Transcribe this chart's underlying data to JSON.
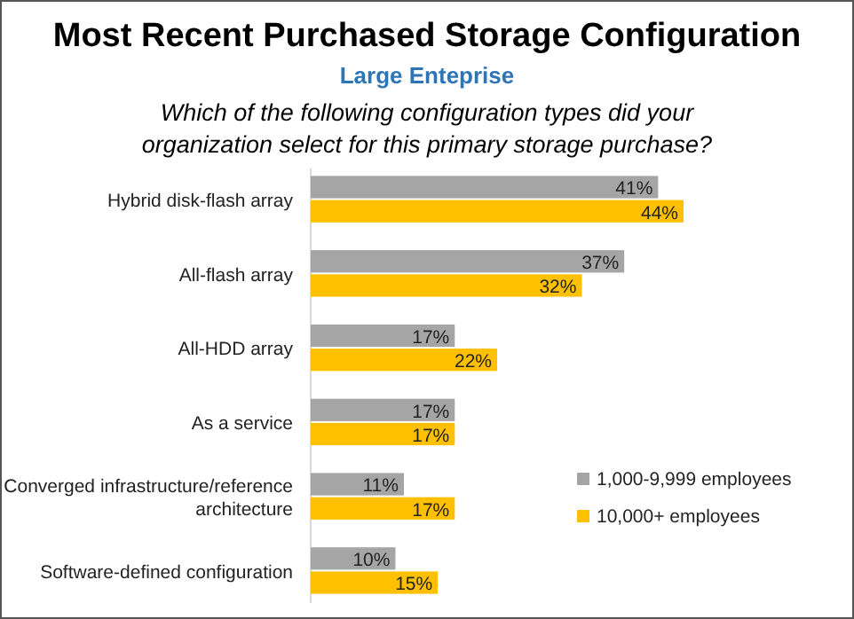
{
  "chart_data": {
    "type": "bar",
    "orientation": "horizontal",
    "title": "Most Recent Purchased Storage Configuration",
    "subtitle": "Large Enteprise",
    "annotations": [
      "Which of the following configuration types did your organization select for this primary storage purchase?"
    ],
    "categories": [
      "Hybrid disk-flash array",
      "All-flash array",
      "All-HDD array",
      "As a service",
      "Converged infrastructure/reference architecture",
      "Software-defined configuration"
    ],
    "series": [
      {
        "name": "1,000-9,999 employees",
        "color": "#a5a5a5",
        "values": [
          41,
          37,
          17,
          17,
          11,
          10
        ],
        "value_labels": [
          "41%",
          "37%",
          "17%",
          "17%",
          "11%",
          "10%"
        ]
      },
      {
        "name": "10,000+ employees",
        "color": "#ffc000",
        "values": [
          44,
          32,
          22,
          17,
          17,
          15
        ],
        "value_labels": [
          "44%",
          "32%",
          "22%",
          "17%",
          "17%",
          "15%"
        ]
      }
    ],
    "legend": "bottom right"
  }
}
